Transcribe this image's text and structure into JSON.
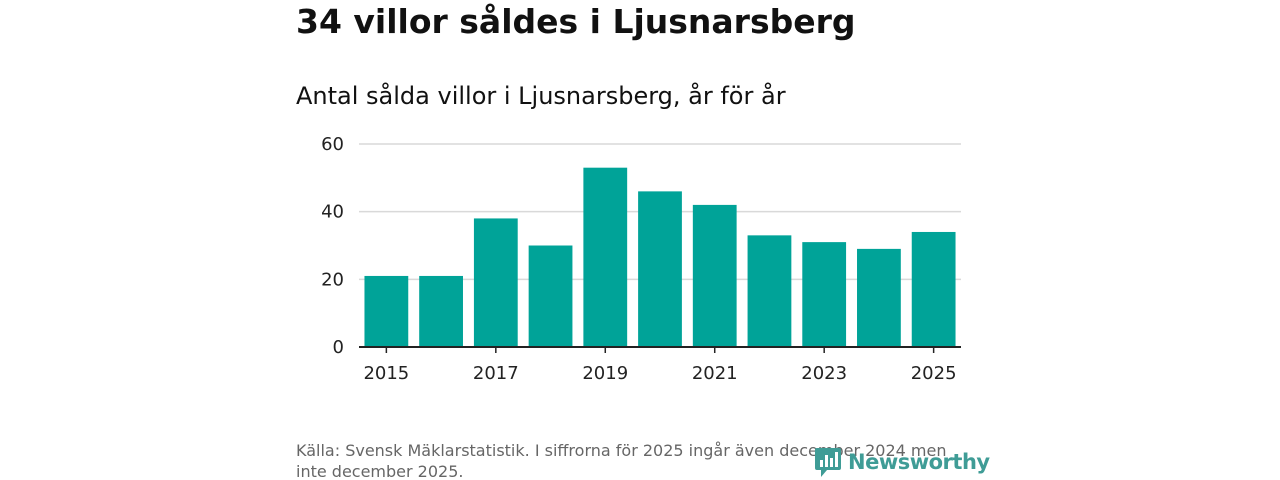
{
  "headline": "34 villor såldes i Ljusnarsberg",
  "subtitle": "Antal sålda villor i Ljusnarsberg, år för år",
  "source": "Källa: Svensk Mäklarstatistik. I siffrorna för 2025 ingår även december 2024 men inte december 2025.",
  "logo_text": "Newsworthy",
  "colors": {
    "bar": "#00a398",
    "grid": "#d9d9d9",
    "axis": "#222222",
    "logo": "#3f9c96"
  },
  "chart_data": {
    "type": "bar",
    "title": "Antal sålda villor i Ljusnarsberg, år för år",
    "xlabel": "",
    "ylabel": "",
    "categories": [
      "2015",
      "2016",
      "2017",
      "2018",
      "2019",
      "2020",
      "2021",
      "2022",
      "2023",
      "2024",
      "2025"
    ],
    "values": [
      21,
      21,
      38,
      30,
      53,
      46,
      42,
      33,
      31,
      29,
      34
    ],
    "x_tick_labels": [
      "2015",
      "2017",
      "2019",
      "2021",
      "2023",
      "2025"
    ],
    "y_ticks": [
      0,
      20,
      40,
      60
    ],
    "ylim": [
      0,
      60
    ],
    "grid": true
  }
}
